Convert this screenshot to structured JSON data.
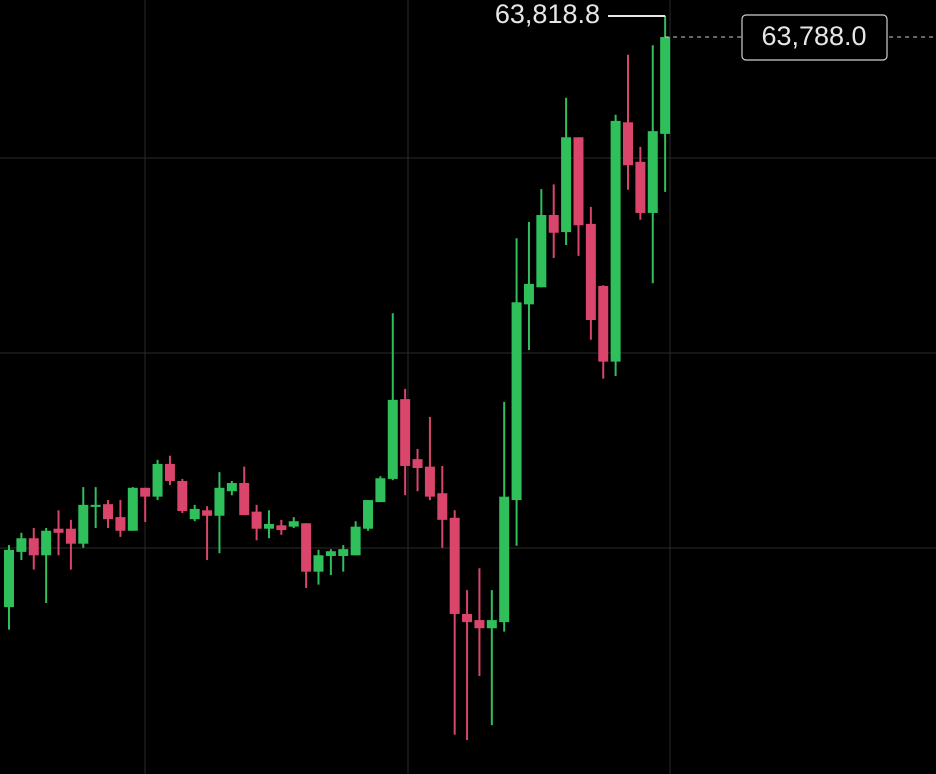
{
  "chart_data": {
    "type": "candlestick",
    "open": [
      62952,
      63033,
      63053,
      63028,
      63067,
      63067,
      63045,
      63099,
      63103,
      63084,
      63064,
      63127,
      63114,
      63162,
      63137,
      63081,
      63094,
      63086,
      63122,
      63134,
      63092,
      63067,
      63072,
      63070,
      63075,
      63004,
      63027,
      63027,
      63028,
      63067,
      63106,
      63140,
      63257,
      63169,
      63158,
      63119,
      63083,
      62942,
      62933,
      62921,
      62930,
      63109,
      63396,
      63421,
      63527,
      63502,
      63641,
      63514,
      63423,
      63312,
      63663,
      63605,
      63530,
      63646
    ],
    "high": [
      63043,
      63061,
      63068,
      63068,
      63094,
      63080,
      63128,
      63128,
      63109,
      63109,
      63128,
      63127,
      63168,
      63174,
      63140,
      63102,
      63100,
      63150,
      63137,
      63158,
      63102,
      63094,
      63080,
      63084,
      63075,
      63036,
      63037,
      63043,
      63078,
      63109,
      63144,
      63383,
      63272,
      63184,
      63231,
      63159,
      63094,
      62977,
      63009,
      62977,
      63253,
      63493,
      63517,
      63565,
      63572,
      63699,
      63641,
      63539,
      63424,
      63674,
      63762,
      63627,
      63776,
      63818.8
    ],
    "low": [
      62919,
      63021,
      63007,
      62958,
      63028,
      63007,
      63039,
      63068,
      63068,
      63055,
      63064,
      63077,
      63109,
      63131,
      63090,
      63078,
      63021,
      63031,
      63116,
      63087,
      63050,
      63053,
      63058,
      63068,
      62980,
      62985,
      62999,
      63004,
      63028,
      63064,
      63106,
      63138,
      63116,
      63122,
      63109,
      63039,
      62765,
      62757,
      62851,
      62779,
      62916,
      63042,
      63329,
      63421,
      63464,
      63483,
      63467,
      63344,
      63287,
      63291,
      63564,
      63520,
      63427,
      63561
    ],
    "close": [
      63036,
      63053,
      63028,
      63064,
      63061,
      63045,
      63102,
      63102,
      63081,
      63064,
      63127,
      63114,
      63162,
      63137,
      63093,
      63096,
      63086,
      63127,
      63134,
      63087,
      63067,
      63074,
      63065,
      63078,
      63004,
      63028,
      63034,
      63037,
      63070,
      63109,
      63141,
      63256,
      63159,
      63156,
      63114,
      63080,
      62942,
      62930,
      62921,
      62933,
      63114,
      63399,
      63426,
      63527,
      63501,
      63641,
      63512,
      63373,
      63312,
      63665,
      63600,
      63530,
      63650,
      63788.0
    ],
    "up_color": "#2fbf5b",
    "down_color": "#d9456b",
    "ylim": [
      62707.3,
      63842.3
    ],
    "high_label": {
      "value": 63818.8,
      "label": "63,818.8"
    },
    "last_price": {
      "value": 63788.0,
      "label": "63,788.0"
    }
  }
}
